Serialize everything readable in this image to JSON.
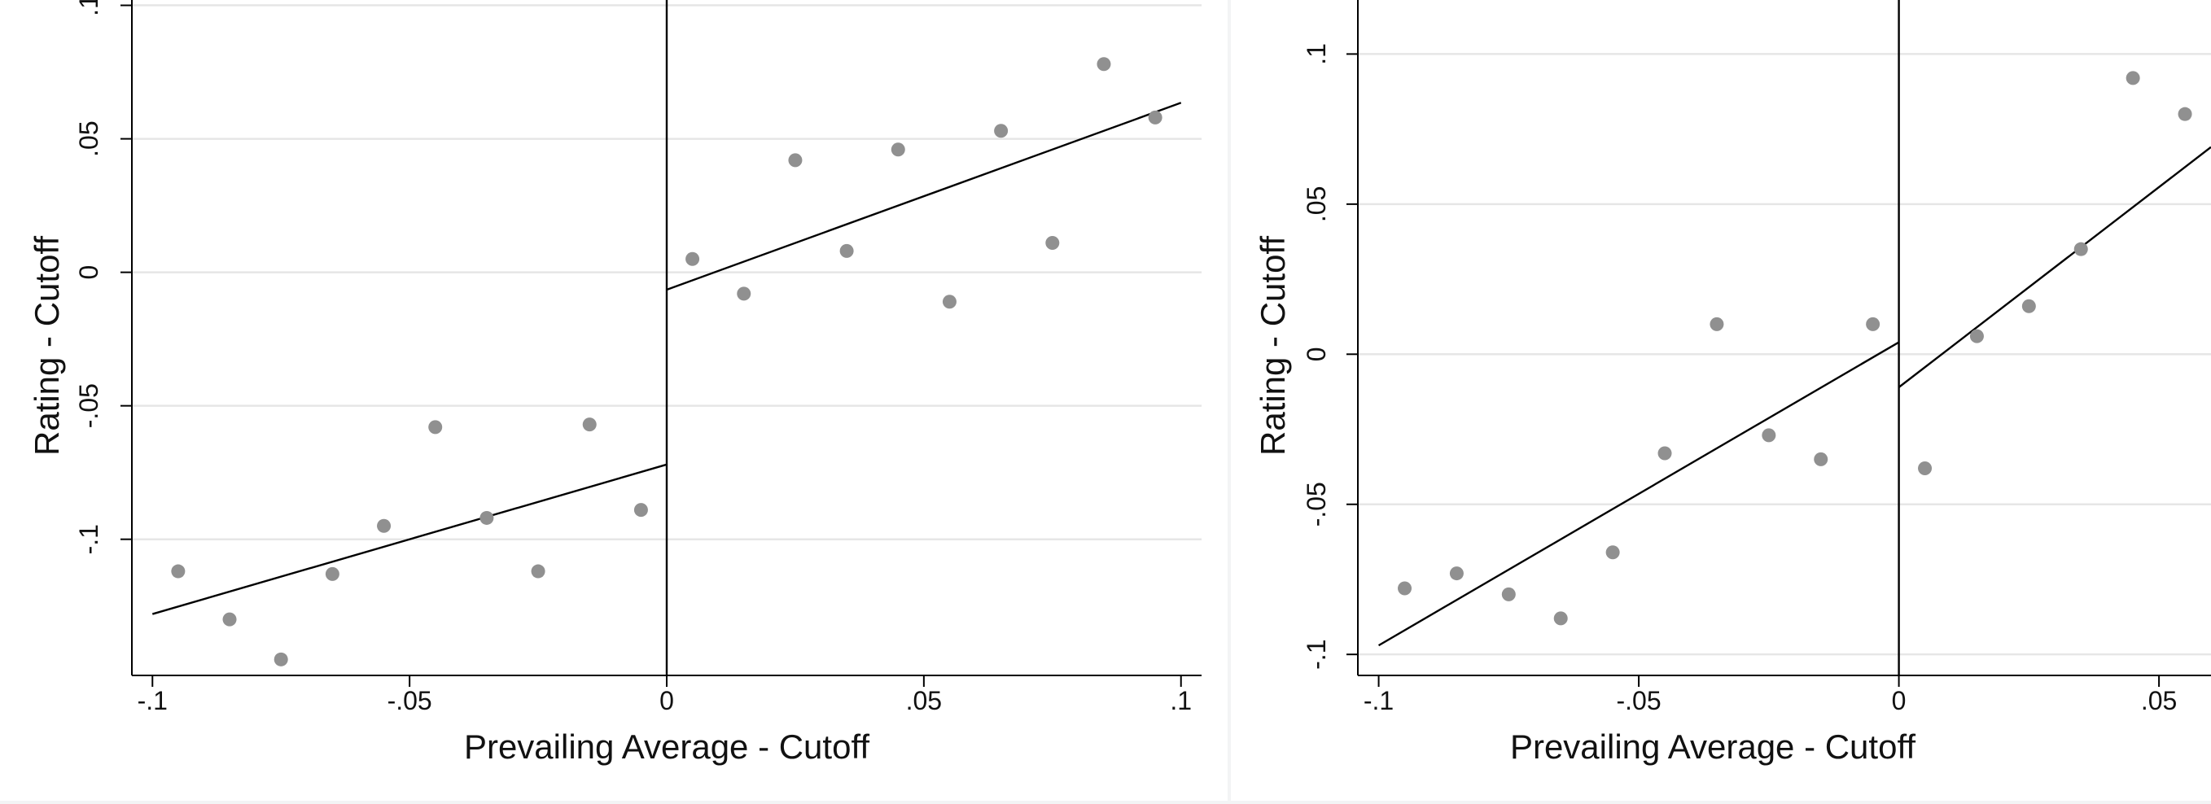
{
  "chart_data": [
    {
      "type": "scatter",
      "xlabel": "Prevailing Average - Cutoff",
      "ylabel": "Rating - Cutoff",
      "xlim": [
        -0.104,
        0.104
      ],
      "ylim": [
        -0.151,
        0.102
      ],
      "xticks": [
        -0.1,
        -0.05,
        0,
        0.05,
        0.1
      ],
      "xtick_labels": [
        "-.1",
        "-.05",
        "0",
        ".05",
        ".1"
      ],
      "yticks": [
        -0.1,
        -0.05,
        0,
        0.05,
        0.1
      ],
      "ytick_labels": [
        "-.1",
        "-.05",
        "0",
        ".05",
        ".1"
      ],
      "grid": true,
      "legend": "none",
      "cutoff_x": 0,
      "points": [
        {
          "x": -0.095,
          "y": -0.112
        },
        {
          "x": -0.085,
          "y": -0.13
        },
        {
          "x": -0.075,
          "y": -0.145
        },
        {
          "x": -0.065,
          "y": -0.113
        },
        {
          "x": -0.055,
          "y": -0.095
        },
        {
          "x": -0.045,
          "y": -0.058
        },
        {
          "x": -0.035,
          "y": -0.092
        },
        {
          "x": -0.025,
          "y": -0.112
        },
        {
          "x": -0.015,
          "y": -0.057
        },
        {
          "x": -0.005,
          "y": -0.089
        },
        {
          "x": 0.005,
          "y": 0.005
        },
        {
          "x": 0.015,
          "y": -0.008
        },
        {
          "x": 0.025,
          "y": 0.042
        },
        {
          "x": 0.035,
          "y": 0.008
        },
        {
          "x": 0.045,
          "y": 0.046
        },
        {
          "x": 0.055,
          "y": -0.011
        },
        {
          "x": 0.065,
          "y": 0.053
        },
        {
          "x": 0.075,
          "y": 0.011
        },
        {
          "x": 0.085,
          "y": 0.078
        },
        {
          "x": 0.095,
          "y": 0.058
        }
      ],
      "fit_left": {
        "x": [
          -0.1,
          0.0
        ],
        "y": [
          -0.128,
          -0.072
        ]
      },
      "fit_right": {
        "x": [
          0.0,
          0.1
        ],
        "y": [
          -0.0065,
          0.0635
        ]
      }
    },
    {
      "type": "scatter",
      "xlabel": "Prevailing Average - Cutoff",
      "ylabel": "Rating - Cutoff",
      "xlim": [
        -0.104,
        0.06
      ],
      "ylim": [
        -0.107,
        0.118
      ],
      "xticks": [
        -0.1,
        -0.05,
        0,
        0.05
      ],
      "xtick_labels": [
        "-.1",
        "-.05",
        "0",
        ".05"
      ],
      "yticks": [
        -0.1,
        -0.05,
        0,
        0.05,
        0.1
      ],
      "ytick_labels": [
        "-.1",
        "-.05",
        "0",
        ".05",
        ".1"
      ],
      "grid": true,
      "legend": "none",
      "cutoff_x": 0,
      "points": [
        {
          "x": -0.095,
          "y": -0.078
        },
        {
          "x": -0.085,
          "y": -0.073
        },
        {
          "x": -0.075,
          "y": -0.08
        },
        {
          "x": -0.065,
          "y": -0.088
        },
        {
          "x": -0.055,
          "y": -0.066
        },
        {
          "x": -0.045,
          "y": -0.033
        },
        {
          "x": -0.035,
          "y": 0.01
        },
        {
          "x": -0.025,
          "y": -0.027
        },
        {
          "x": -0.015,
          "y": -0.035
        },
        {
          "x": -0.005,
          "y": 0.01
        },
        {
          "x": 0.005,
          "y": -0.038
        },
        {
          "x": 0.015,
          "y": 0.006
        },
        {
          "x": 0.025,
          "y": 0.016
        },
        {
          "x": 0.035,
          "y": 0.035
        },
        {
          "x": 0.045,
          "y": 0.092
        },
        {
          "x": 0.055,
          "y": 0.08
        }
      ],
      "fit_left": {
        "x": [
          -0.1,
          0.0
        ],
        "y": [
          -0.097,
          0.004
        ]
      },
      "fit_right": {
        "x": [
          0.0,
          0.06
        ],
        "y": [
          -0.011,
          0.069
        ]
      }
    }
  ]
}
